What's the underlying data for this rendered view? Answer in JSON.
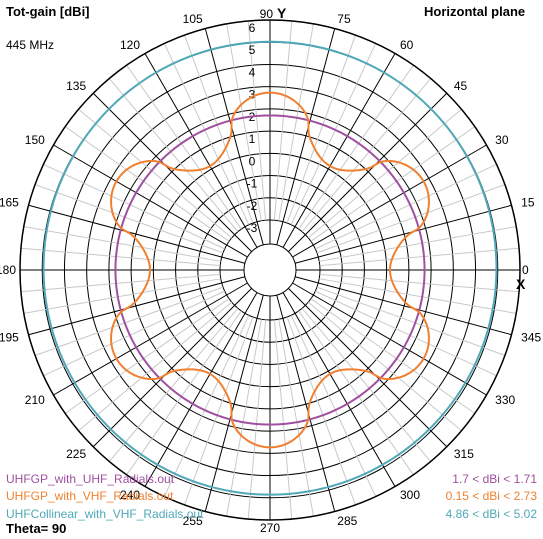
{
  "header": {
    "title": "Tot-gain [dBi]",
    "frequency": "445 MHz",
    "plane": "Horizontal plane",
    "theta": "Theta= 90"
  },
  "chart_data": {
    "type": "polar",
    "radial_unit": "dBi",
    "radial_range": [
      -3,
      6
    ],
    "radial_ticks": [
      "-3",
      "-2",
      "-1",
      "0",
      "1",
      "2",
      "3",
      "4",
      "5",
      "6"
    ],
    "angle_ticks": [
      "0",
      "15",
      "30",
      "45",
      "60",
      "75",
      "90",
      "105",
      "120",
      "135",
      "150",
      "165",
      "180",
      "195",
      "210",
      "225",
      "240",
      "255",
      "270",
      "285",
      "300",
      "315",
      "330",
      "345"
    ],
    "axis_x_label": "X",
    "axis_y_label": "Y",
    "series": [
      {
        "name": "UHFGP_with_UHF_Radials.out",
        "color": "#a050a0",
        "range": "1.7 < dBi < 1.71",
        "min": 1.7,
        "max": 1.71,
        "lobes": 0
      },
      {
        "name": "UHFGP_with_VHF_Radials.out",
        "color": "#f08030",
        "range": "0.15 < dBi < 2.73",
        "min": 0.15,
        "max": 2.73,
        "lobes": 6
      },
      {
        "name": "UHFCollinear_with_VHF_Radials.out",
        "color": "#50a8b8",
        "range": "4.86 < dBi < 5.02",
        "min": 4.86,
        "max": 5.02,
        "lobes": 1
      }
    ]
  }
}
